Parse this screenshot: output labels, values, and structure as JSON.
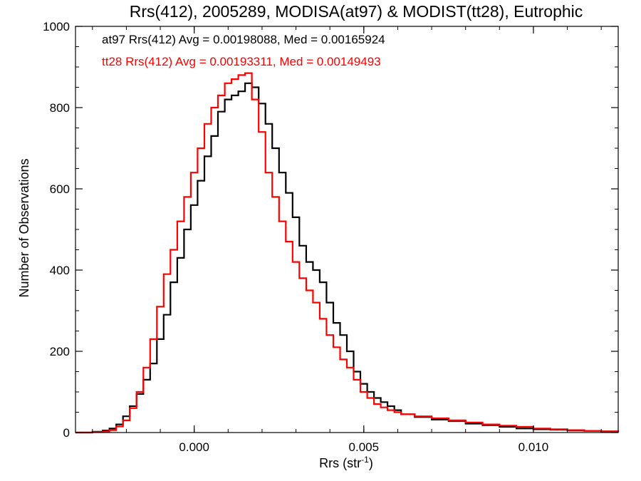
{
  "chart_data": {
    "type": "line",
    "title": "Rrs(412), 2005289, MODISA(at97) & MODIST(tt28), Eutrophic",
    "xlabel_main": "Rrs (str",
    "xlabel_sup": "-1",
    "xlabel_close": ")",
    "ylabel": "Number of Observations",
    "xlim": [
      -0.0035,
      0.0125
    ],
    "ylim": [
      0,
      1000
    ],
    "xticks": [
      0.0,
      0.005,
      0.01
    ],
    "xtick_labels": [
      "0.000",
      "0.005",
      "0.010"
    ],
    "yticks": [
      0,
      200,
      400,
      600,
      800,
      1000
    ],
    "ytick_labels": [
      "0",
      "200",
      "400",
      "600",
      "800",
      "1000"
    ],
    "grid": false,
    "annotations": [
      {
        "text": "at97 Rrs(412) Avg = 0.00198088, Med = 0.00165924",
        "color": "#000000"
      },
      {
        "text": "tt28 Rrs(412) Avg = 0.00193311, Med = 0.00149493",
        "color": "#ff0000"
      }
    ],
    "series": [
      {
        "color": "#000000",
        "x": [
          -0.0035,
          -0.003,
          -0.0027,
          -0.0025,
          -0.0023,
          -0.0021,
          -0.0019,
          -0.0017,
          -0.0015,
          -0.0013,
          -0.0011,
          -0.0009,
          -0.0007,
          -0.0005,
          -0.0003,
          -0.0001,
          0.0001,
          0.0003,
          0.0005,
          0.0007,
          0.0009,
          0.0011,
          0.0013,
          0.0015,
          0.0017,
          0.0019,
          0.0021,
          0.0023,
          0.0025,
          0.0027,
          0.0029,
          0.0031,
          0.0033,
          0.0035,
          0.0037,
          0.0039,
          0.0041,
          0.0043,
          0.0045,
          0.0047,
          0.0049,
          0.0051,
          0.0053,
          0.0055,
          0.0057,
          0.0059,
          0.0061,
          0.0065,
          0.007,
          0.0075,
          0.008,
          0.0085,
          0.009,
          0.0095,
          0.01,
          0.0105,
          0.011,
          0.0115,
          0.012,
          0.0125
        ],
        "y": [
          0,
          2,
          5,
          10,
          20,
          40,
          65,
          95,
          130,
          170,
          230,
          290,
          370,
          430,
          500,
          560,
          620,
          680,
          730,
          790,
          820,
          830,
          840,
          860,
          850,
          810,
          760,
          700,
          640,
          590,
          530,
          460,
          420,
          400,
          370,
          320,
          270,
          240,
          200,
          150,
          120,
          100,
          85,
          75,
          65,
          55,
          45,
          38,
          32,
          28,
          22,
          18,
          14,
          10,
          8,
          7,
          5,
          4,
          3,
          2
        ]
      },
      {
        "color": "#ff0000",
        "x": [
          -0.0035,
          -0.003,
          -0.0027,
          -0.0025,
          -0.0023,
          -0.0021,
          -0.0019,
          -0.0017,
          -0.0015,
          -0.0013,
          -0.0011,
          -0.0009,
          -0.0007,
          -0.0005,
          -0.0003,
          -0.0001,
          0.0001,
          0.0003,
          0.0005,
          0.0007,
          0.0009,
          0.0011,
          0.0013,
          0.0015,
          0.0017,
          0.0019,
          0.0021,
          0.0023,
          0.0025,
          0.0027,
          0.0029,
          0.0031,
          0.0033,
          0.0035,
          0.0037,
          0.0039,
          0.0041,
          0.0043,
          0.0045,
          0.0047,
          0.0049,
          0.0051,
          0.0053,
          0.0055,
          0.0057,
          0.0059,
          0.0061,
          0.0065,
          0.007,
          0.0075,
          0.008,
          0.0085,
          0.009,
          0.0095,
          0.01,
          0.0105,
          0.011,
          0.0115,
          0.012,
          0.0125
        ],
        "y": [
          0,
          1,
          3,
          6,
          15,
          30,
          60,
          100,
          160,
          230,
          310,
          390,
          450,
          520,
          580,
          640,
          700,
          760,
          800,
          830,
          860,
          870,
          880,
          885,
          820,
          740,
          640,
          580,
          520,
          470,
          420,
          380,
          350,
          320,
          280,
          240,
          210,
          180,
          160,
          130,
          100,
          85,
          70,
          62,
          55,
          50,
          45,
          40,
          35,
          30,
          25,
          20,
          17,
          14,
          10,
          8,
          6,
          4,
          3,
          2
        ]
      }
    ]
  }
}
